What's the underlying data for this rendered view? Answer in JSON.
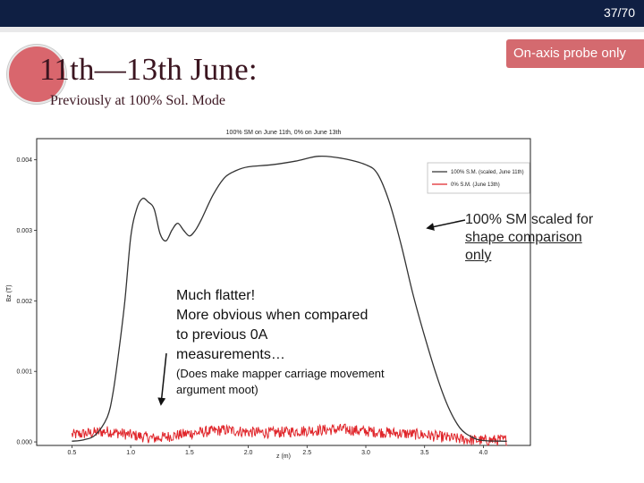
{
  "page_number": "37/70",
  "title": "11th—13th June:",
  "subtitle": "Previously at 100% Sol. Mode",
  "badge": "On-axis probe only",
  "plot": {
    "title": "100% SM on June 11th, 0% on June 13th",
    "ylabel": "Bz (T)",
    "xlabel": "z (m)",
    "legend": [
      "100% S.M. (scaled, June 11th)",
      "0% S.M. (June 13th)"
    ],
    "colors": {
      "scaled": "#333333",
      "zero": "#e0262b"
    },
    "xticks": [
      "0.5",
      "1.0",
      "1.5",
      "2.0",
      "2.5",
      "3.0",
      "3.5",
      "4.0"
    ],
    "yticks": [
      "0.000",
      "0.001",
      "0.002",
      "0.003",
      "0.004"
    ]
  },
  "chart_data": {
    "type": "line",
    "title": "100% SM on June 11th, 0% on June 13th",
    "xlabel": "z (m)",
    "ylabel": "Bz (T)",
    "xlim": [
      0.2,
      4.4
    ],
    "ylim": [
      -5e-05,
      0.0043
    ],
    "series": [
      {
        "name": "100% S.M. (scaled, June 11th)",
        "x": [
          0.5,
          0.6,
          0.7,
          0.8,
          0.85,
          0.9,
          0.95,
          1.0,
          1.05,
          1.1,
          1.15,
          1.2,
          1.25,
          1.3,
          1.35,
          1.4,
          1.45,
          1.5,
          1.55,
          1.6,
          1.7,
          1.8,
          1.9,
          2.0,
          2.2,
          2.4,
          2.6,
          2.8,
          3.0,
          3.1,
          3.2,
          3.3,
          3.4,
          3.5,
          3.6,
          3.7,
          3.8,
          3.9,
          4.0,
          4.2
        ],
        "y": [
          1e-05,
          3e-05,
          0.0001,
          0.00035,
          0.0007,
          0.0013,
          0.002,
          0.0029,
          0.0033,
          0.00345,
          0.0034,
          0.0033,
          0.00295,
          0.00285,
          0.003,
          0.0031,
          0.003,
          0.00292,
          0.003,
          0.00315,
          0.0035,
          0.00375,
          0.00385,
          0.0039,
          0.00393,
          0.00398,
          0.00405,
          0.00402,
          0.00393,
          0.0038,
          0.0034,
          0.0028,
          0.0021,
          0.0015,
          0.00095,
          0.0005,
          0.0002,
          7e-05,
          2e-05,
          1e-05
        ]
      },
      {
        "name": "0% S.M. (June 13th)",
        "x": [
          0.5,
          0.8,
          1.0,
          1.2,
          1.5,
          1.8,
          2.0,
          2.2,
          2.5,
          2.8,
          3.0,
          3.2,
          3.5,
          3.8,
          4.0,
          4.2
        ],
        "y": [
          0.0001,
          0.00015,
          0.0001,
          5e-05,
          0.00012,
          0.00017,
          0.00014,
          0.00013,
          0.00016,
          0.00018,
          0.00015,
          0.00013,
          0.0001,
          4e-05,
          2e-05,
          3e-05
        ]
      }
    ]
  },
  "callout": {
    "line1": "100% SM scaled for",
    "line2": "shape comparison",
    "line3": "only"
  },
  "note": {
    "line1": "Much flatter!",
    "line2": "More obvious when compared",
    "line3": "to previous 0A",
    "line4": "measurements…",
    "small1": "(Does make mapper carriage movement",
    "small2": "argument moot)"
  }
}
